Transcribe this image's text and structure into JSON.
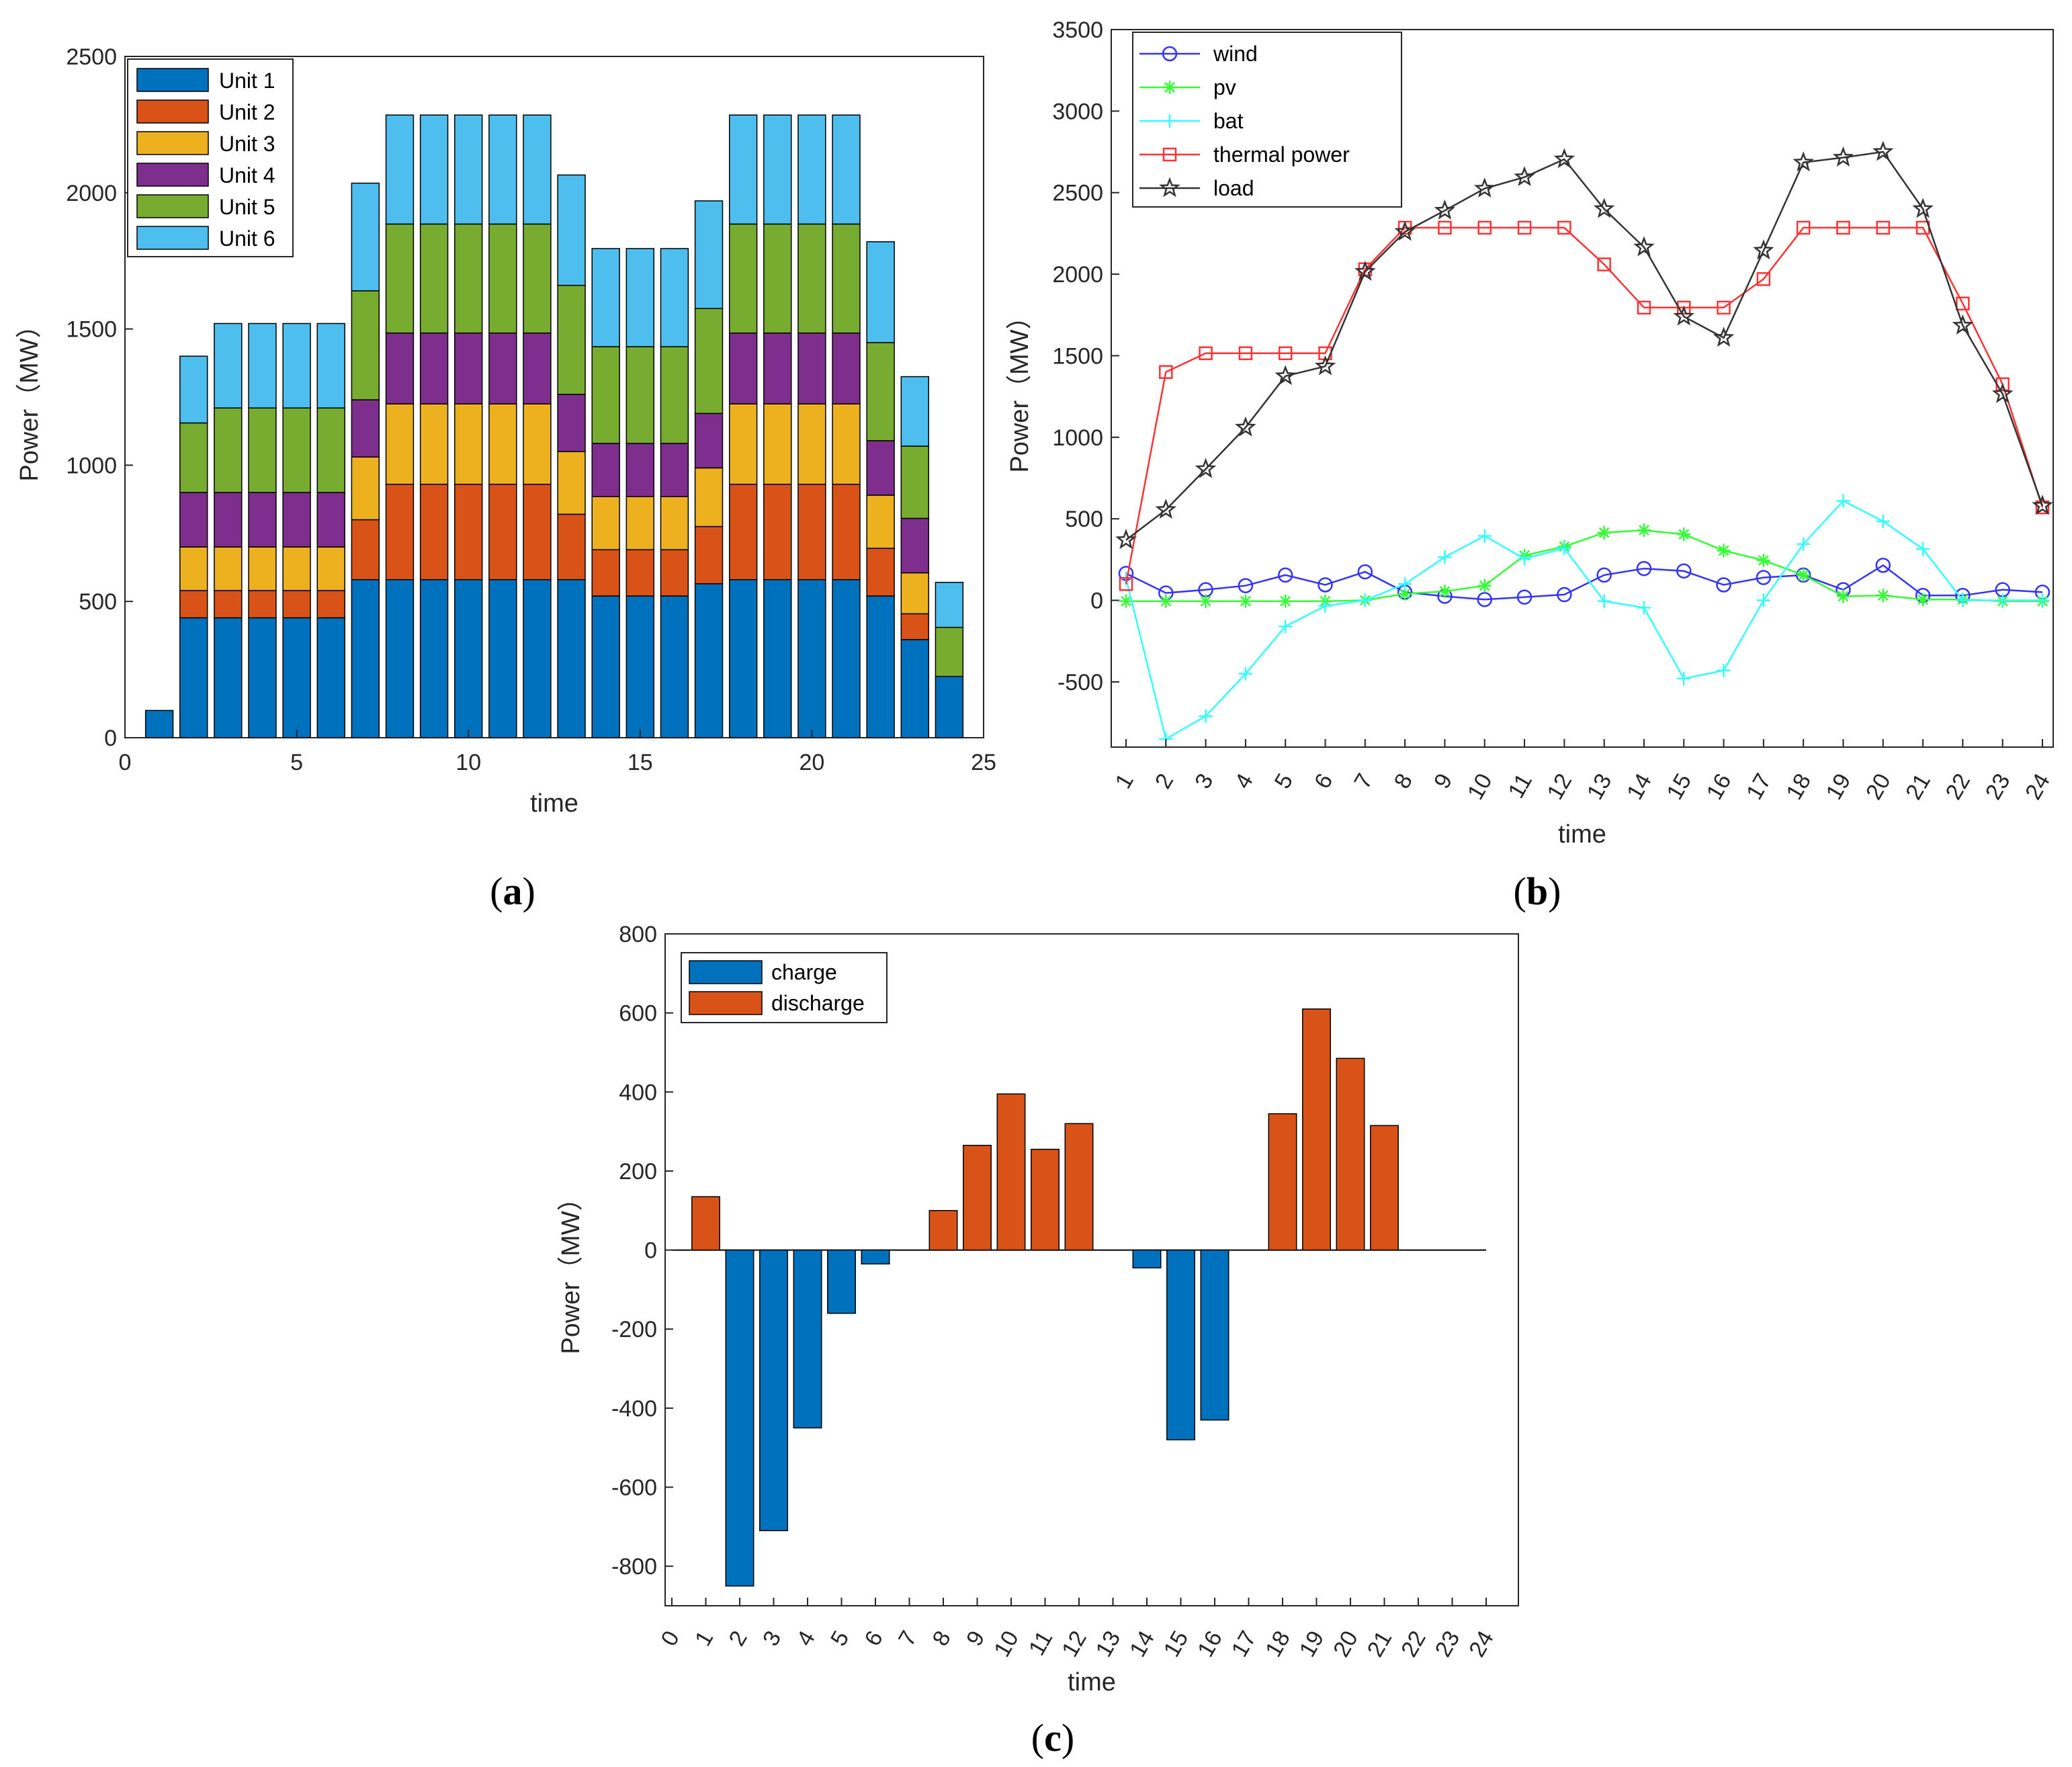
{
  "panels": {
    "a": {
      "prefix": "(",
      "letter": "a",
      "suffix": ")"
    },
    "b": {
      "prefix": "(",
      "letter": "b",
      "suffix": ")"
    },
    "c": {
      "prefix": "(",
      "letter": "c",
      "suffix": ")"
    }
  },
  "chart_data": [
    {
      "id": "a",
      "type": "bar",
      "stacked": true,
      "xlabel": "time",
      "ylabel": "Power（MW）",
      "xlim": [
        0,
        25
      ],
      "ylim": [
        0,
        2500
      ],
      "xticks": [
        0,
        5,
        10,
        15,
        20,
        25
      ],
      "yticks": [
        0,
        500,
        1000,
        1500,
        2000,
        2500
      ],
      "legend_position": "top-left",
      "grid": false,
      "x": [
        1,
        2,
        3,
        4,
        5,
        6,
        7,
        8,
        9,
        10,
        11,
        12,
        13,
        14,
        15,
        16,
        17,
        18,
        19,
        20,
        21,
        22,
        23,
        24
      ],
      "series": [
        {
          "name": "Unit 1",
          "color": "#0072BD",
          "values": [
            100,
            440,
            440,
            440,
            440,
            440,
            580,
            580,
            580,
            580,
            580,
            580,
            580,
            520,
            520,
            520,
            565,
            580,
            580,
            580,
            580,
            520,
            360,
            225
          ]
        },
        {
          "name": "Unit 2",
          "color": "#D95319",
          "values": [
            0,
            100,
            100,
            100,
            100,
            100,
            220,
            350,
            350,
            350,
            350,
            350,
            240,
            170,
            170,
            170,
            210,
            350,
            350,
            350,
            350,
            175,
            95,
            0
          ]
        },
        {
          "name": "Unit 3",
          "color": "#EDB120",
          "values": [
            0,
            160,
            160,
            160,
            160,
            160,
            230,
            295,
            295,
            295,
            295,
            295,
            230,
            195,
            195,
            195,
            215,
            295,
            295,
            295,
            295,
            195,
            150,
            0
          ]
        },
        {
          "name": "Unit 4",
          "color": "#7E2F8E",
          "values": [
            0,
            200,
            200,
            200,
            200,
            200,
            210,
            260,
            260,
            260,
            260,
            260,
            210,
            195,
            195,
            195,
            200,
            260,
            260,
            260,
            260,
            200,
            200,
            0
          ]
        },
        {
          "name": "Unit 5",
          "color": "#77AC30",
          "values": [
            0,
            255,
            310,
            310,
            310,
            310,
            400,
            400,
            400,
            400,
            400,
            400,
            400,
            355,
            355,
            355,
            385,
            400,
            400,
            400,
            400,
            360,
            265,
            180
          ]
        },
        {
          "name": "Unit 6",
          "color": "#4DBEEE",
          "values": [
            0,
            245,
            310,
            310,
            310,
            310,
            395,
            400,
            400,
            400,
            400,
            400,
            405,
            360,
            360,
            360,
            395,
            400,
            400,
            400,
            400,
            370,
            255,
            165
          ]
        }
      ]
    },
    {
      "id": "b",
      "type": "line",
      "xlabel": "time",
      "ylabel": "Power（MW）",
      "xlim": [
        1,
        24
      ],
      "ylim": [
        -900,
        3500
      ],
      "xticks": [
        1,
        2,
        3,
        4,
        5,
        6,
        7,
        8,
        9,
        10,
        11,
        12,
        13,
        14,
        15,
        16,
        17,
        18,
        19,
        20,
        21,
        22,
        23,
        24
      ],
      "yticks": [
        -500,
        0,
        500,
        1000,
        1500,
        2000,
        2500,
        3000,
        3500
      ],
      "legend_position": "top-left",
      "grid": false,
      "x": [
        1,
        2,
        3,
        4,
        5,
        6,
        7,
        8,
        9,
        10,
        11,
        12,
        13,
        14,
        15,
        16,
        17,
        18,
        19,
        20,
        21,
        22,
        23,
        24
      ],
      "series": [
        {
          "name": "wind",
          "color": "#3333FF",
          "marker": "circle",
          "values": [
            165,
            45,
            65,
            90,
            155,
            95,
            175,
            50,
            25,
            5,
            20,
            35,
            155,
            195,
            180,
            95,
            140,
            155,
            65,
            215,
            30,
            30,
            65,
            50
          ]
        },
        {
          "name": "pv",
          "color": "#33FF33",
          "marker": "asterisk",
          "values": [
            -5,
            -5,
            -5,
            -5,
            -5,
            -5,
            0,
            40,
            55,
            90,
            275,
            330,
            415,
            430,
            405,
            305,
            245,
            155,
            25,
            30,
            5,
            5,
            -5,
            -5
          ]
        },
        {
          "name": "bat",
          "color": "#33FFFF",
          "marker": "plus",
          "values": [
            135,
            -850,
            -710,
            -450,
            -160,
            -35,
            0,
            100,
            265,
            395,
            255,
            320,
            -5,
            -45,
            -480,
            -430,
            0,
            345,
            610,
            485,
            315,
            0,
            0,
            0
          ]
        },
        {
          "name": "thermal power",
          "color": "#FF3333",
          "marker": "square",
          "values": [
            100,
            1400,
            1515,
            1515,
            1515,
            1515,
            2030,
            2285,
            2285,
            2285,
            2285,
            2285,
            2060,
            1795,
            1795,
            1795,
            1970,
            2285,
            2285,
            2285,
            2285,
            1820,
            1325,
            570
          ]
        },
        {
          "name": "load",
          "color": "#333333",
          "marker": "star",
          "values": [
            370,
            555,
            805,
            1060,
            1375,
            1435,
            2015,
            2260,
            2390,
            2525,
            2595,
            2705,
            2400,
            2165,
            1740,
            1610,
            2145,
            2685,
            2715,
            2750,
            2400,
            1685,
            1265,
            580
          ]
        }
      ]
    },
    {
      "id": "c",
      "type": "bar",
      "xlabel": "time",
      "ylabel": "Power（MW）",
      "xlim": [
        0,
        24
      ],
      "ylim": [
        -900,
        800
      ],
      "xticks": [
        0,
        1,
        2,
        3,
        4,
        5,
        6,
        7,
        8,
        9,
        10,
        11,
        12,
        13,
        14,
        15,
        16,
        17,
        18,
        19,
        20,
        21,
        22,
        23,
        24
      ],
      "yticks": [
        -800,
        -600,
        -400,
        -200,
        0,
        200,
        400,
        600,
        800
      ],
      "legend_position": "top-left",
      "grid": false,
      "x": [
        1,
        2,
        3,
        4,
        5,
        6,
        7,
        8,
        9,
        10,
        11,
        12,
        13,
        14,
        15,
        16,
        17,
        18,
        19,
        20,
        21,
        22,
        23,
        24
      ],
      "series": [
        {
          "name": "charge",
          "color": "#0072BD",
          "values": [
            0,
            -850,
            -710,
            -450,
            -160,
            -35,
            0,
            0,
            0,
            0,
            0,
            0,
            0,
            -45,
            -480,
            -430,
            0,
            0,
            0,
            0,
            0,
            0,
            0,
            0
          ]
        },
        {
          "name": "discharge",
          "color": "#D95319",
          "values": [
            135,
            0,
            0,
            0,
            0,
            0,
            0,
            100,
            265,
            395,
            255,
            320,
            0,
            0,
            0,
            0,
            0,
            345,
            610,
            485,
            315,
            0,
            0,
            0
          ]
        }
      ]
    }
  ]
}
